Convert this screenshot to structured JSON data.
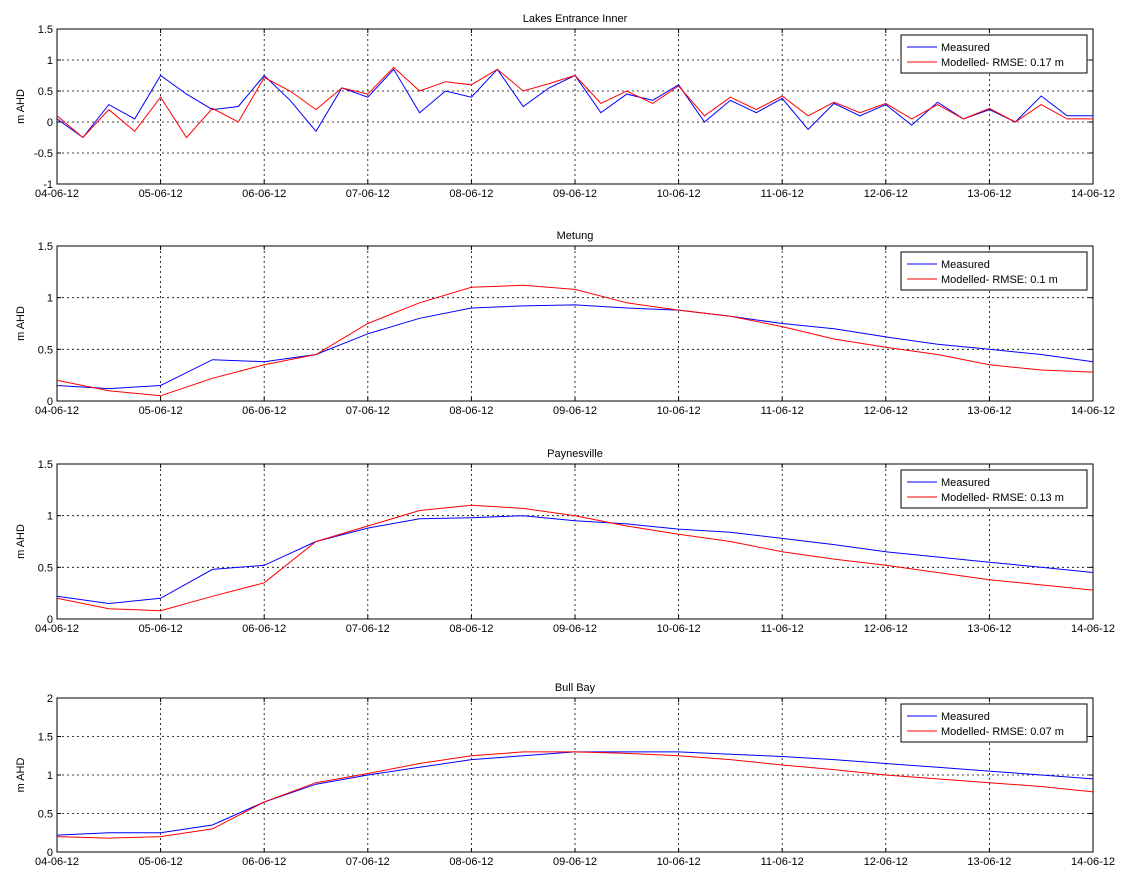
{
  "chart_data": [
    {
      "type": "line",
      "title": "Lakes Entrance Inner",
      "xlabel": "",
      "ylabel": "m AHD",
      "x_tick_labels": [
        "04-06-12",
        "05-06-12",
        "06-06-12",
        "07-06-12",
        "08-06-12",
        "09-06-12",
        "10-06-12",
        "11-06-12",
        "12-06-12",
        "13-06-12",
        "14-06-12"
      ],
      "xlim": [
        "04-06-12",
        "14-06-12"
      ],
      "ylim": [
        -1,
        1.5
      ],
      "y_ticks": [
        "-1",
        "-0.5",
        "0",
        "0.5",
        "1",
        "1.5"
      ],
      "grid": true,
      "legend": "top-right",
      "series": [
        {
          "name": "Measured",
          "color": "#0000ff",
          "x": [
            "04-06-12 00:00",
            "04-06-12 06:00",
            "04-06-12 12:00",
            "04-06-12 18:00",
            "05-06-12 00:00",
            "05-06-12 06:00",
            "05-06-12 12:00",
            "05-06-12 18:00",
            "06-06-12 00:00",
            "06-06-12 06:00",
            "06-06-12 12:00",
            "06-06-12 18:00",
            "07-06-12 00:00",
            "07-06-12 06:00",
            "07-06-12 12:00",
            "07-06-12 18:00",
            "08-06-12 00:00",
            "08-06-12 06:00",
            "08-06-12 12:00",
            "08-06-12 18:00",
            "09-06-12 00:00",
            "09-06-12 06:00",
            "09-06-12 12:00",
            "09-06-12 18:00",
            "10-06-12 00:00",
            "10-06-12 06:00",
            "10-06-12 12:00",
            "10-06-12 18:00",
            "11-06-12 00:00",
            "11-06-12 06:00",
            "11-06-12 12:00",
            "11-06-12 18:00",
            "12-06-12 00:00",
            "12-06-12 06:00",
            "12-06-12 12:00",
            "12-06-12 18:00",
            "13-06-12 00:00",
            "13-06-12 06:00",
            "13-06-12 12:00",
            "13-06-12 18:00",
            "14-06-12 00:00"
          ],
          "y": [
            0.05,
            -0.25,
            0.28,
            0.05,
            0.75,
            0.45,
            0.2,
            0.25,
            0.75,
            0.35,
            -0.15,
            0.55,
            0.4,
            0.85,
            0.15,
            0.5,
            0.4,
            0.85,
            0.25,
            0.55,
            0.75,
            0.15,
            0.45,
            0.35,
            0.6,
            0.0,
            0.35,
            0.15,
            0.38,
            -0.12,
            0.3,
            0.1,
            0.28,
            -0.05,
            0.32,
            0.05,
            0.2,
            0.0,
            0.42,
            0.1,
            0.1
          ]
        },
        {
          "name": "Modelled- RMSE: 0.17 m",
          "color": "#ff0000",
          "x": [
            "04-06-12 00:00",
            "04-06-12 06:00",
            "04-06-12 12:00",
            "04-06-12 18:00",
            "05-06-12 00:00",
            "05-06-12 06:00",
            "05-06-12 12:00",
            "05-06-12 18:00",
            "06-06-12 00:00",
            "06-06-12 06:00",
            "06-06-12 12:00",
            "06-06-12 18:00",
            "07-06-12 00:00",
            "07-06-12 06:00",
            "07-06-12 12:00",
            "07-06-12 18:00",
            "08-06-12 00:00",
            "08-06-12 06:00",
            "08-06-12 12:00",
            "08-06-12 18:00",
            "09-06-12 00:00",
            "09-06-12 06:00",
            "09-06-12 12:00",
            "09-06-12 18:00",
            "10-06-12 00:00",
            "10-06-12 06:00",
            "10-06-12 12:00",
            "10-06-12 18:00",
            "11-06-12 00:00",
            "11-06-12 06:00",
            "11-06-12 12:00",
            "11-06-12 18:00",
            "12-06-12 00:00",
            "12-06-12 06:00",
            "12-06-12 12:00",
            "12-06-12 18:00",
            "13-06-12 00:00",
            "13-06-12 06:00",
            "13-06-12 12:00",
            "13-06-12 18:00",
            "14-06-12 00:00"
          ],
          "y": [
            0.1,
            -0.25,
            0.2,
            -0.15,
            0.4,
            -0.25,
            0.22,
            0.0,
            0.72,
            0.5,
            0.2,
            0.55,
            0.45,
            0.88,
            0.5,
            0.65,
            0.6,
            0.85,
            0.5,
            0.62,
            0.75,
            0.3,
            0.5,
            0.3,
            0.58,
            0.1,
            0.4,
            0.2,
            0.42,
            0.1,
            0.32,
            0.15,
            0.3,
            0.05,
            0.28,
            0.05,
            0.22,
            0.0,
            0.28,
            0.05,
            0.05
          ]
        }
      ]
    },
    {
      "type": "line",
      "title": "Metung",
      "xlabel": "",
      "ylabel": "m AHD",
      "x_tick_labels": [
        "04-06-12",
        "05-06-12",
        "06-06-12",
        "07-06-12",
        "08-06-12",
        "09-06-12",
        "10-06-12",
        "11-06-12",
        "12-06-12",
        "13-06-12",
        "14-06-12"
      ],
      "xlim": [
        "04-06-12",
        "14-06-12"
      ],
      "ylim": [
        0,
        1.5
      ],
      "y_ticks": [
        "0",
        "0.5",
        "1",
        "1.5"
      ],
      "grid": true,
      "legend": "top-right",
      "series": [
        {
          "name": "Measured",
          "color": "#0000ff",
          "x": [
            "04-06-12 00:00",
            "04-06-12 12:00",
            "05-06-12 00:00",
            "05-06-12 12:00",
            "06-06-12 00:00",
            "06-06-12 12:00",
            "07-06-12 00:00",
            "07-06-12 12:00",
            "08-06-12 00:00",
            "08-06-12 12:00",
            "09-06-12 00:00",
            "09-06-12 12:00",
            "10-06-12 00:00",
            "10-06-12 12:00",
            "11-06-12 00:00",
            "11-06-12 12:00",
            "12-06-12 00:00",
            "12-06-12 12:00",
            "13-06-12 00:00",
            "13-06-12 12:00",
            "14-06-12 00:00"
          ],
          "y": [
            0.15,
            0.12,
            0.15,
            0.4,
            0.38,
            0.45,
            0.65,
            0.8,
            0.9,
            0.92,
            0.93,
            0.9,
            0.88,
            0.82,
            0.75,
            0.7,
            0.62,
            0.55,
            0.5,
            0.45,
            0.38
          ]
        },
        {
          "name": "Modelled- RMSE: 0.1 m",
          "color": "#ff0000",
          "x": [
            "04-06-12 00:00",
            "04-06-12 12:00",
            "05-06-12 00:00",
            "05-06-12 12:00",
            "06-06-12 00:00",
            "06-06-12 12:00",
            "07-06-12 00:00",
            "07-06-12 12:00",
            "08-06-12 00:00",
            "08-06-12 12:00",
            "09-06-12 00:00",
            "09-06-12 12:00",
            "10-06-12 00:00",
            "10-06-12 12:00",
            "11-06-12 00:00",
            "11-06-12 12:00",
            "12-06-12 00:00",
            "12-06-12 12:00",
            "13-06-12 00:00",
            "13-06-12 12:00",
            "14-06-12 00:00"
          ],
          "y": [
            0.2,
            0.1,
            0.05,
            0.22,
            0.35,
            0.45,
            0.75,
            0.95,
            1.1,
            1.12,
            1.08,
            0.95,
            0.88,
            0.82,
            0.72,
            0.6,
            0.52,
            0.45,
            0.35,
            0.3,
            0.28
          ]
        }
      ]
    },
    {
      "type": "line",
      "title": "Paynesville",
      "xlabel": "",
      "ylabel": "m AHD",
      "x_tick_labels": [
        "04-06-12",
        "05-06-12",
        "06-06-12",
        "07-06-12",
        "08-06-12",
        "09-06-12",
        "10-06-12",
        "11-06-12",
        "12-06-12",
        "13-06-12",
        "14-06-12"
      ],
      "xlim": [
        "04-06-12",
        "14-06-12"
      ],
      "ylim": [
        0,
        1.5
      ],
      "y_ticks": [
        "0",
        "0.5",
        "1",
        "1.5"
      ],
      "grid": true,
      "legend": "top-right",
      "series": [
        {
          "name": "Measured",
          "color": "#0000ff",
          "x": [
            "04-06-12 00:00",
            "04-06-12 12:00",
            "05-06-12 00:00",
            "05-06-12 12:00",
            "06-06-12 00:00",
            "06-06-12 12:00",
            "07-06-12 00:00",
            "07-06-12 12:00",
            "08-06-12 00:00",
            "08-06-12 12:00",
            "09-06-12 00:00",
            "09-06-12 12:00",
            "10-06-12 00:00",
            "10-06-12 12:00",
            "11-06-12 00:00",
            "11-06-12 12:00",
            "12-06-12 00:00",
            "12-06-12 12:00",
            "13-06-12 00:00",
            "13-06-12 12:00",
            "14-06-12 00:00"
          ],
          "y": [
            0.22,
            0.15,
            0.2,
            0.48,
            0.52,
            0.75,
            0.88,
            0.97,
            0.98,
            1.0,
            0.95,
            0.92,
            0.87,
            0.84,
            0.78,
            0.72,
            0.65,
            0.6,
            0.55,
            0.5,
            0.45
          ]
        },
        {
          "name": "Modelled- RMSE: 0.13 m",
          "color": "#ff0000",
          "x": [
            "04-06-12 00:00",
            "04-06-12 12:00",
            "05-06-12 00:00",
            "05-06-12 12:00",
            "06-06-12 00:00",
            "06-06-12 12:00",
            "07-06-12 00:00",
            "07-06-12 12:00",
            "08-06-12 00:00",
            "08-06-12 12:00",
            "09-06-12 00:00",
            "09-06-12 12:00",
            "10-06-12 00:00",
            "10-06-12 12:00",
            "11-06-12 00:00",
            "11-06-12 12:00",
            "12-06-12 00:00",
            "12-06-12 12:00",
            "13-06-12 00:00",
            "13-06-12 12:00",
            "14-06-12 00:00"
          ],
          "y": [
            0.2,
            0.1,
            0.08,
            0.22,
            0.35,
            0.75,
            0.9,
            1.05,
            1.1,
            1.07,
            1.0,
            0.9,
            0.82,
            0.75,
            0.65,
            0.58,
            0.52,
            0.45,
            0.38,
            0.33,
            0.28
          ]
        }
      ]
    },
    {
      "type": "line",
      "title": "Bull Bay",
      "xlabel": "",
      "ylabel": "m AHD",
      "x_tick_labels": [
        "04-06-12",
        "05-06-12",
        "06-06-12",
        "07-06-12",
        "08-06-12",
        "09-06-12",
        "10-06-12",
        "11-06-12",
        "12-06-12",
        "13-06-12",
        "14-06-12"
      ],
      "xlim": [
        "04-06-12",
        "14-06-12"
      ],
      "ylim": [
        0,
        2
      ],
      "y_ticks": [
        "0",
        "0.5",
        "1",
        "1.5",
        "2"
      ],
      "grid": true,
      "legend": "top-right",
      "series": [
        {
          "name": "Measured",
          "color": "#0000ff",
          "x": [
            "04-06-12 00:00",
            "04-06-12 12:00",
            "05-06-12 00:00",
            "05-06-12 12:00",
            "06-06-12 00:00",
            "06-06-12 12:00",
            "07-06-12 00:00",
            "07-06-12 12:00",
            "08-06-12 00:00",
            "08-06-12 12:00",
            "09-06-12 00:00",
            "09-06-12 12:00",
            "10-06-12 00:00",
            "10-06-12 12:00",
            "11-06-12 00:00",
            "11-06-12 12:00",
            "12-06-12 00:00",
            "12-06-12 12:00",
            "13-06-12 00:00",
            "13-06-12 12:00",
            "14-06-12 00:00"
          ],
          "y": [
            0.22,
            0.25,
            0.25,
            0.35,
            0.65,
            0.88,
            1.0,
            1.1,
            1.2,
            1.25,
            1.3,
            1.3,
            1.3,
            1.27,
            1.24,
            1.2,
            1.15,
            1.1,
            1.05,
            1.0,
            0.95
          ]
        },
        {
          "name": "Modelled- RMSE: 0.07 m",
          "color": "#ff0000",
          "x": [
            "04-06-12 00:00",
            "04-06-12 12:00",
            "05-06-12 00:00",
            "05-06-12 12:00",
            "06-06-12 00:00",
            "06-06-12 12:00",
            "07-06-12 00:00",
            "07-06-12 12:00",
            "08-06-12 00:00",
            "08-06-12 12:00",
            "09-06-12 00:00",
            "09-06-12 12:00",
            "10-06-12 00:00",
            "10-06-12 12:00",
            "11-06-12 00:00",
            "11-06-12 12:00",
            "12-06-12 00:00",
            "12-06-12 12:00",
            "13-06-12 00:00",
            "13-06-12 12:00",
            "14-06-12 00:00"
          ],
          "y": [
            0.2,
            0.18,
            0.2,
            0.3,
            0.65,
            0.9,
            1.02,
            1.15,
            1.25,
            1.3,
            1.3,
            1.28,
            1.25,
            1.2,
            1.13,
            1.07,
            1.0,
            0.95,
            0.9,
            0.85,
            0.78
          ]
        }
      ]
    }
  ]
}
